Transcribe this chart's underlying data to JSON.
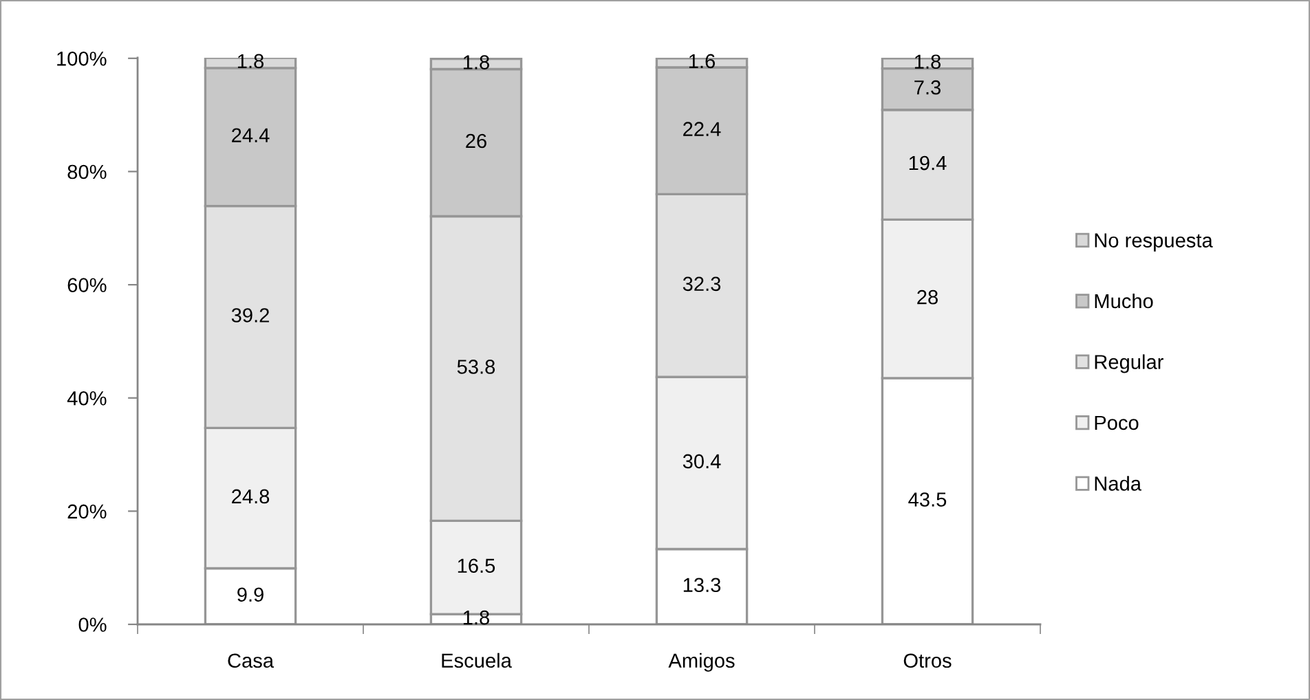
{
  "chart_data": {
    "type": "bar",
    "stacked": true,
    "categories": [
      "Casa",
      "Escuela",
      "Amigos",
      "Otros"
    ],
    "series": [
      {
        "name": "Nada",
        "color": "#ffffff",
        "values": [
          9.9,
          1.8,
          13.3,
          43.5
        ]
      },
      {
        "name": "Poco",
        "color": "#f0f0f0",
        "values": [
          24.8,
          16.5,
          30.4,
          28
        ]
      },
      {
        "name": "Regular",
        "color": "#e2e2e2",
        "values": [
          39.2,
          53.8,
          32.3,
          19.4
        ]
      },
      {
        "name": "Mucho",
        "color": "#c8c8c8",
        "values": [
          24.4,
          26,
          22.4,
          7.3
        ]
      },
      {
        "name": "No respuesta",
        "color": "#d9d9d9",
        "values": [
          1.8,
          1.8,
          1.6,
          1.8
        ]
      }
    ],
    "ylim": [
      0,
      100.1
    ],
    "yticks": [
      {
        "value": 0,
        "label": "0%"
      },
      {
        "value": 20,
        "label": "20%"
      },
      {
        "value": 40,
        "label": "40%"
      },
      {
        "value": 60,
        "label": "60%"
      },
      {
        "value": 80,
        "label": "80%"
      },
      {
        "value": 100,
        "label": "100%"
      }
    ],
    "data_labels": true,
    "grid": false,
    "legend": "right"
  }
}
